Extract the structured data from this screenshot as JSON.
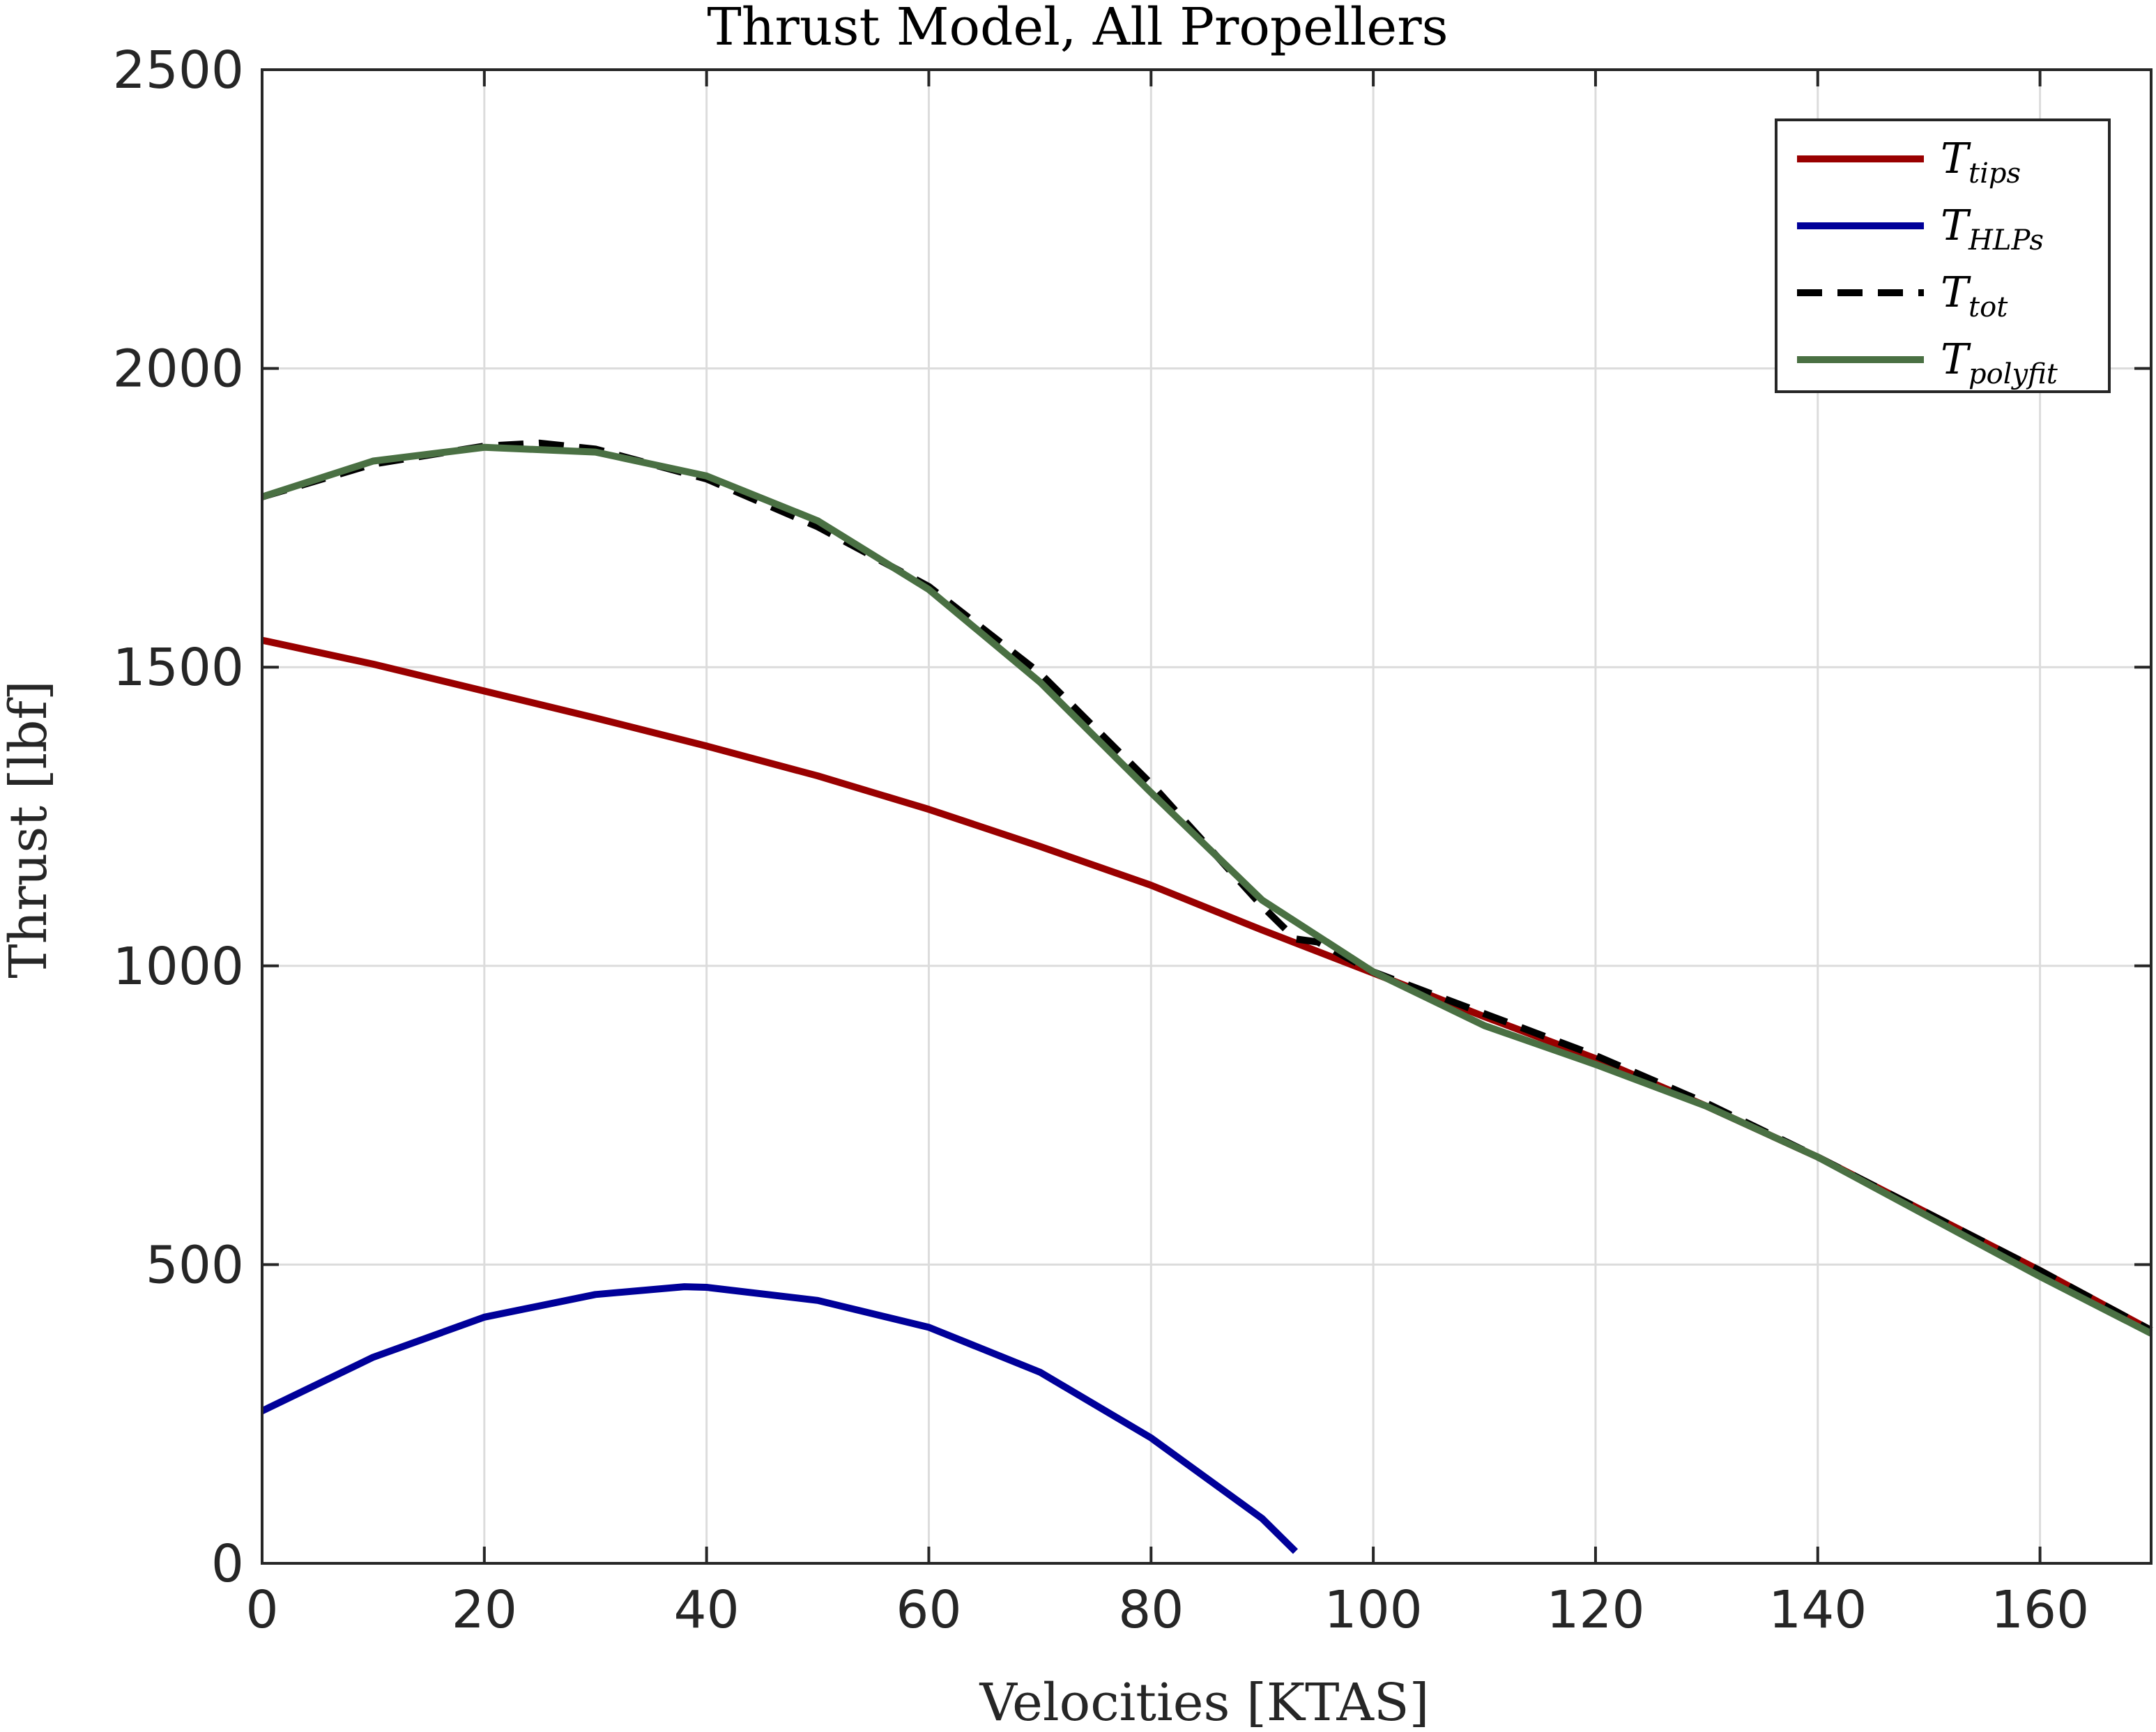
{
  "chart_data": {
    "type": "line",
    "title": "Thrust Model, All Propellers",
    "xlabel": "Velocities [KTAS]",
    "ylabel": "Thrust [lbf]",
    "xlim": [
      0,
      170
    ],
    "ylim": [
      0,
      2500
    ],
    "xticks": [
      0,
      20,
      40,
      60,
      80,
      100,
      120,
      140,
      160
    ],
    "yticks": [
      0,
      500,
      1000,
      1500,
      2000,
      2500
    ],
    "grid": true,
    "legend_position": "top-right",
    "series": [
      {
        "name": "T_tips",
        "legend_main": "T",
        "legend_sub": "tips",
        "color": "#990000",
        "style": "solid",
        "x": [
          0,
          10,
          20,
          30,
          40,
          50,
          60,
          70,
          80,
          90,
          100,
          110,
          120,
          130,
          140,
          150,
          160,
          170
        ],
        "y": [
          1545,
          1505,
          1460,
          1415,
          1368,
          1318,
          1262,
          1200,
          1135,
          1060,
          988,
          915,
          845,
          765,
          680,
          585,
          490,
          390
        ]
      },
      {
        "name": "T_HLPs",
        "legend_main": "T",
        "legend_sub": "HLPs",
        "color": "#000099",
        "style": "solid",
        "x": [
          0,
          10,
          20,
          30,
          38,
          40,
          50,
          60,
          70,
          80,
          90,
          93
        ],
        "y": [
          255,
          345,
          412,
          450,
          463,
          462,
          440,
          395,
          320,
          210,
          75,
          20
        ]
      },
      {
        "name": "T_tot",
        "legend_main": "T",
        "legend_sub": "tot",
        "color": "#000000",
        "style": "dashed",
        "x": [
          0,
          10,
          20,
          25,
          30,
          40,
          50,
          60,
          70,
          80,
          90,
          93,
          95,
          100,
          110,
          120,
          130,
          140,
          150,
          160,
          170
        ],
        "y": [
          1785,
          1840,
          1870,
          1875,
          1865,
          1815,
          1735,
          1635,
          1490,
          1305,
          1100,
          1045,
          1040,
          990,
          920,
          850,
          770,
          680,
          585,
          490,
          390
        ]
      },
      {
        "name": "T_polyfit",
        "legend_main": "T",
        "legend_sub": "polyfit",
        "color": "#4a7043",
        "style": "solid",
        "x": [
          0,
          10,
          20,
          30,
          40,
          50,
          60,
          70,
          80,
          90,
          100,
          110,
          120,
          130,
          140,
          150,
          160,
          170
        ],
        "y": [
          1785,
          1845,
          1868,
          1860,
          1820,
          1745,
          1630,
          1475,
          1290,
          1110,
          990,
          900,
          835,
          765,
          680,
          580,
          480,
          385
        ]
      }
    ]
  }
}
